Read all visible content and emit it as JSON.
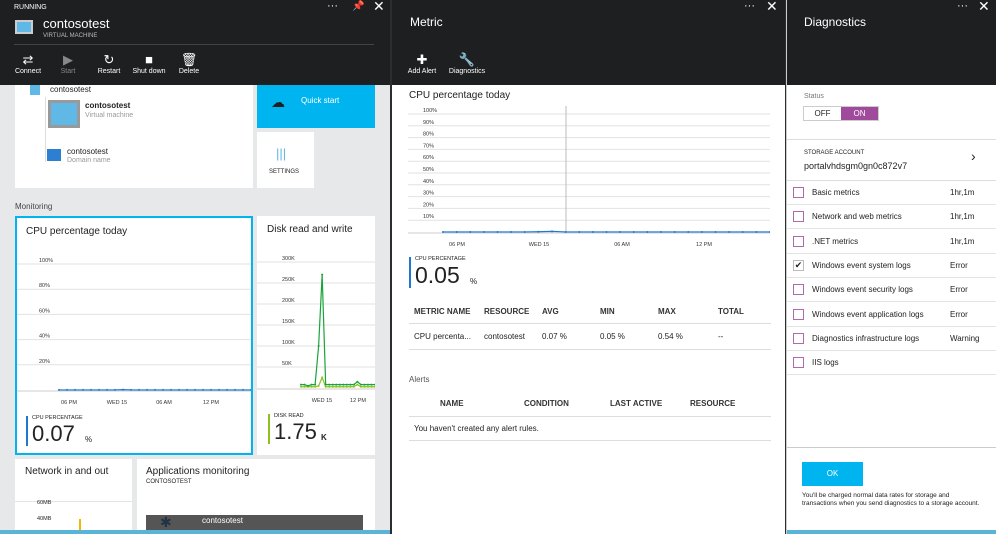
{
  "vm_blade": {
    "status": "RUNNING",
    "title": "contosotest",
    "subtitle": "VIRTUAL MACHINE",
    "toolbar": [
      {
        "label": "Connect",
        "icon": "connect-icon"
      },
      {
        "label": "Start",
        "icon": "play-icon"
      },
      {
        "label": "Restart",
        "icon": "restart-icon"
      },
      {
        "label": "Shut down",
        "icon": "stop-icon"
      },
      {
        "label": "Delete",
        "icon": "trash-icon"
      }
    ],
    "resource_group": "contosotest",
    "vm_name": "contosotest",
    "vm_type": "Virtual machine",
    "domain_name": "contosotest",
    "domain_type": "Domain name",
    "quick_start": "Quick start",
    "settings": "SETTINGS",
    "monitoring_label": "Monitoring",
    "cpu_tile": {
      "title": "CPU percentage today",
      "metric_label": "CPU PERCENTAGE",
      "value": "0.07",
      "unit": "%"
    },
    "disk_tile": {
      "title": "Disk read and write",
      "metric_label": "DISK READ",
      "value": "1.75",
      "unit": "K"
    },
    "network_tile": {
      "title": "Network in and out",
      "ticks": [
        "60MB",
        "40MB"
      ]
    },
    "apps_tile": {
      "title": "Applications monitoring",
      "subtitle": "CONTOSOTEST",
      "item": "contosotest"
    }
  },
  "metric_blade": {
    "title": "Metric",
    "toolbar": [
      {
        "label": "Add Alert",
        "icon": "plus-icon"
      },
      {
        "label": "Diagnostics",
        "icon": "wrench-icon"
      }
    ],
    "chart_title": "CPU percentage today",
    "metric_label": "CPU PERCENTAGE",
    "value": "0.05",
    "unit": "%",
    "table": {
      "headers": [
        "METRIC NAME",
        "RESOURCE",
        "AVG",
        "MIN",
        "MAX",
        "TOTAL"
      ],
      "rows": [
        [
          "CPU percenta...",
          "contosotest",
          "0.07 %",
          "0.05 %",
          "0.54 %",
          "--"
        ]
      ]
    },
    "alerts_label": "Alerts",
    "alerts_table": {
      "headers": [
        "NAME",
        "CONDITION",
        "LAST ACTIVE",
        "RESOURCE"
      ],
      "empty": "You haven't created any alert rules."
    }
  },
  "diagnostics_blade": {
    "title": "Diagnostics",
    "status_label": "Status",
    "toggle": {
      "off": "OFF",
      "on": "ON",
      "selected": "ON"
    },
    "storage_label": "STORAGE ACCOUNT",
    "storage_value": "portalvhdsgm0gn0c872v7",
    "items": [
      {
        "label": "Basic metrics",
        "value": "1hr,1m",
        "checked": false
      },
      {
        "label": "Network and web metrics",
        "value": "1hr,1m",
        "checked": false
      },
      {
        "label": ".NET metrics",
        "value": "1hr,1m",
        "checked": false
      },
      {
        "label": "Windows event system logs",
        "value": "Error",
        "checked": true
      },
      {
        "label": "Windows event security logs",
        "value": "Error",
        "checked": false
      },
      {
        "label": "Windows event application logs",
        "value": "Error",
        "checked": false
      },
      {
        "label": "Diagnostics infrastructure logs",
        "value": "Warning",
        "checked": false
      },
      {
        "label": "IIS logs",
        "value": "",
        "checked": false
      }
    ],
    "ok": "OK",
    "note": "You'll be charged normal data rates for storage and transactions when you send diagnostics to a storage account."
  },
  "colors": {
    "accent": "#00b4f0",
    "toggle_on": "#a04a9b",
    "header": "#1e1f20",
    "cpu_line": "#1e78d2",
    "disk_read": "#1aa33a",
    "disk_write": "#8cc11f"
  },
  "chart_data": [
    {
      "type": "line",
      "title": "CPU percentage today",
      "x_ticks": [
        "06 PM",
        "WED 15",
        "06 AM",
        "12 PM"
      ],
      "y_ticks": [
        "100%",
        "80%",
        "60%",
        "40%",
        "20%"
      ],
      "ylim": [
        0,
        100
      ],
      "series": [
        {
          "values": [
            0.05,
            0.05,
            0.05,
            0.05,
            0.05,
            0.05,
            0.05,
            0.05,
            0.3,
            0.05,
            0.05,
            0.05,
            0.05,
            0.05,
            0.05,
            0.05,
            0.05,
            0.05,
            0.05,
            0.05,
            0.05,
            0.05,
            0.05,
            0.05,
            0.05
          ]
        }
      ]
    },
    {
      "type": "line",
      "title": "Disk read and write",
      "x_ticks": [
        "WED 15",
        "12 PM"
      ],
      "y_ticks": [
        "300K",
        "250K",
        "200K",
        "150K",
        "100K",
        "50K"
      ],
      "ylim": [
        0,
        300000
      ],
      "series": [
        {
          "name": "DISK READ",
          "values": [
            8000,
            8000,
            5000,
            8000,
            8000,
            100000,
            270000,
            8000,
            8000,
            8000,
            8000,
            8000,
            8000,
            8000,
            8000,
            8000,
            15000,
            8000,
            8000,
            8000,
            8000,
            8000
          ]
        },
        {
          "values": [
            3000,
            3000,
            3000,
            3000,
            3000,
            5000,
            25000,
            3000,
            3000,
            3000,
            3000,
            3000,
            3000,
            3000,
            3000,
            3000,
            8000,
            3000,
            3000,
            3000,
            3000,
            3000
          ]
        }
      ]
    },
    {
      "type": "line",
      "title": "CPU percentage today",
      "x_ticks": [
        "06 PM",
        "WED 15",
        "06 AM",
        "12 PM"
      ],
      "y_ticks": [
        "100%",
        "90%",
        "80%",
        "70%",
        "60%",
        "50%",
        "40%",
        "30%",
        "20%",
        "10%"
      ],
      "ylim": [
        0,
        100
      ],
      "series": [
        {
          "values": [
            0.05,
            0.05,
            0.05,
            0.05,
            0.05,
            0.05,
            0.05,
            0.2,
            0.54,
            0.05,
            0.05,
            0.05,
            0.05,
            0.05,
            0.05,
            0.05,
            0.05,
            0.05,
            0.05,
            0.05,
            0.05,
            0.05,
            0.05,
            0.05,
            0.05
          ]
        }
      ]
    }
  ]
}
